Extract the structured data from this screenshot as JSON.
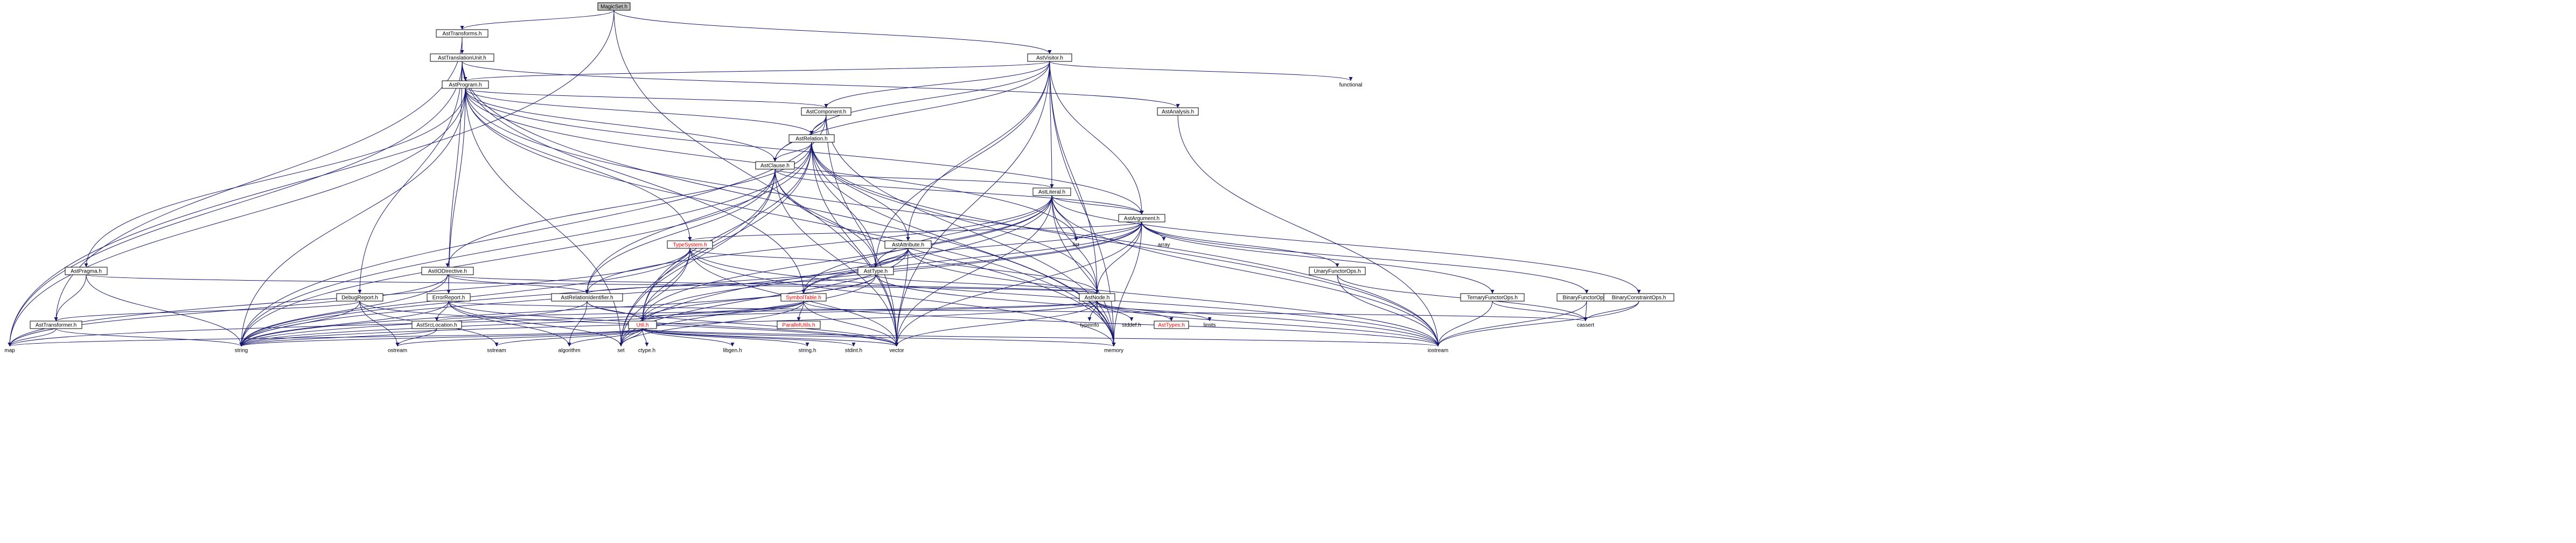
{
  "colors": {
    "edge": "#191970",
    "box_border": "#000000",
    "box_fill": "#ffffff",
    "root_fill": "#bfbfbf",
    "red_text": "#ff0000",
    "normal_text": "#000000"
  },
  "nodes": [
    {
      "id": "magicset",
      "label": "MagicSet.h",
      "style": "root"
    },
    {
      "id": "asttransforms",
      "label": "AstTransforms.h",
      "style": "box"
    },
    {
      "id": "asttranslationunit",
      "label": "AstTranslationUnit.h",
      "style": "box"
    },
    {
      "id": "astvisitor",
      "label": "AstVisitor.h",
      "style": "box"
    },
    {
      "id": "functional",
      "label": "functional",
      "style": "plain"
    },
    {
      "id": "astprogram",
      "label": "AstProgram.h",
      "style": "box"
    },
    {
      "id": "astanalysis",
      "label": "AstAnalysis.h",
      "style": "box"
    },
    {
      "id": "astcomponent",
      "label": "AstComponent.h",
      "style": "box"
    },
    {
      "id": "astrelation",
      "label": "AstRelation.h",
      "style": "box"
    },
    {
      "id": "astclause",
      "label": "AstClause.h",
      "style": "box"
    },
    {
      "id": "astliteral",
      "label": "AstLiteral.h",
      "style": "box"
    },
    {
      "id": "astargument",
      "label": "AstArgument.h",
      "style": "box"
    },
    {
      "id": "typesystem",
      "label": "TypeSystem.h",
      "style": "red"
    },
    {
      "id": "astattribute",
      "label": "AstAttribute.h",
      "style": "box"
    },
    {
      "id": "list",
      "label": "list",
      "style": "plain"
    },
    {
      "id": "array",
      "label": "array",
      "style": "plain"
    },
    {
      "id": "unaryfunctorops",
      "label": "UnaryFunctorOps.h",
      "style": "box"
    },
    {
      "id": "astpragma",
      "label": "AstPragma.h",
      "style": "box"
    },
    {
      "id": "astiodirective",
      "label": "AstIODirective.h",
      "style": "box"
    },
    {
      "id": "asttype",
      "label": "AstType.h",
      "style": "box"
    },
    {
      "id": "debugreport",
      "label": "DebugReport.h",
      "style": "box"
    },
    {
      "id": "errorreport",
      "label": "ErrorReport.h",
      "style": "box"
    },
    {
      "id": "astrelationidentifier",
      "label": "AstRelationIdentifier.h",
      "style": "box"
    },
    {
      "id": "symboltable",
      "label": "SymbolTable.h",
      "style": "red"
    },
    {
      "id": "astnode",
      "label": "AstNode.h",
      "style": "box"
    },
    {
      "id": "ternaryfunctorops",
      "label": "TernaryFunctorOps.h",
      "style": "box"
    },
    {
      "id": "binaryfunctorops",
      "label": "BinaryFunctorOps.h",
      "style": "box"
    },
    {
      "id": "binaryconstraintops",
      "label": "BinaryConstraintOps.h",
      "style": "box"
    },
    {
      "id": "asttransformer",
      "label": "AstTransformer.h",
      "style": "box"
    },
    {
      "id": "astsrclocation",
      "label": "AstSrcLocation.h",
      "style": "box"
    },
    {
      "id": "parallelutils",
      "label": "ParallelUtils.h",
      "style": "red"
    },
    {
      "id": "util",
      "label": "Util.h",
      "style": "red"
    },
    {
      "id": "typeinfo",
      "label": "typeinfo",
      "style": "plain"
    },
    {
      "id": "stddef",
      "label": "stddef.h",
      "style": "plain"
    },
    {
      "id": "asttypes",
      "label": "AstTypes.h",
      "style": "red"
    },
    {
      "id": "limits",
      "label": "limits",
      "style": "plain"
    },
    {
      "id": "cassert",
      "label": "cassert",
      "style": "plain"
    },
    {
      "id": "map",
      "label": "map",
      "style": "plain"
    },
    {
      "id": "string",
      "label": "string",
      "style": "plain"
    },
    {
      "id": "ostream",
      "label": "ostream",
      "style": "plain"
    },
    {
      "id": "sstream",
      "label": "sstream",
      "style": "plain"
    },
    {
      "id": "algorithm",
      "label": "algorithm",
      "style": "plain"
    },
    {
      "id": "set",
      "label": "set",
      "style": "plain"
    },
    {
      "id": "ctype",
      "label": "ctype.h",
      "style": "plain"
    },
    {
      "id": "libgen",
      "label": "libgen.h",
      "style": "plain"
    },
    {
      "id": "stringh",
      "label": "string.h",
      "style": "plain"
    },
    {
      "id": "stdint",
      "label": "stdint.h",
      "style": "plain"
    },
    {
      "id": "vector",
      "label": "vector",
      "style": "plain"
    },
    {
      "id": "memory",
      "label": "memory",
      "style": "plain"
    },
    {
      "id": "iostream",
      "label": "iostream",
      "style": "plain"
    }
  ],
  "edges": [
    [
      "magicset",
      "asttransforms"
    ],
    [
      "magicset",
      "astvisitor"
    ],
    [
      "magicset",
      "map"
    ],
    [
      "magicset",
      "vector"
    ],
    [
      "asttransforms",
      "asttranslationunit"
    ],
    [
      "asttransforms",
      "asttransformer"
    ],
    [
      "asttranslationunit",
      "astprogram"
    ],
    [
      "asttranslationunit",
      "astanalysis"
    ],
    [
      "asttranslationunit",
      "debugreport"
    ],
    [
      "asttranslationunit",
      "errorreport"
    ],
    [
      "asttranslationunit",
      "symboltable"
    ],
    [
      "asttranslationunit",
      "memory"
    ],
    [
      "asttranslationunit",
      "map"
    ],
    [
      "astvisitor",
      "astprogram"
    ],
    [
      "astvisitor",
      "astcomponent"
    ],
    [
      "astvisitor",
      "astrelation"
    ],
    [
      "astvisitor",
      "astclause"
    ],
    [
      "astvisitor",
      "astliteral"
    ],
    [
      "astvisitor",
      "astargument"
    ],
    [
      "astvisitor",
      "astattribute"
    ],
    [
      "astvisitor",
      "asttype"
    ],
    [
      "astvisitor",
      "astnode"
    ],
    [
      "astvisitor",
      "functional"
    ],
    [
      "astvisitor",
      "vector"
    ],
    [
      "astvisitor",
      "memory"
    ],
    [
      "astprogram",
      "astrelation"
    ],
    [
      "astprogram",
      "astclause"
    ],
    [
      "astprogram",
      "astcomponent"
    ],
    [
      "astprogram",
      "astpragma"
    ],
    [
      "astprogram",
      "typesystem"
    ],
    [
      "astprogram",
      "astargument"
    ],
    [
      "astprogram",
      "errorreport"
    ],
    [
      "astprogram",
      "map"
    ],
    [
      "astprogram",
      "string"
    ],
    [
      "astprogram",
      "set"
    ],
    [
      "astprogram",
      "list"
    ],
    [
      "astprogram",
      "iostream"
    ],
    [
      "astprogram",
      "memory"
    ],
    [
      "astanalysis",
      "iostream"
    ],
    [
      "astcomponent",
      "astrelation"
    ],
    [
      "astcomponent",
      "astclause"
    ],
    [
      "astcomponent",
      "vector"
    ],
    [
      "astcomponent",
      "string"
    ],
    [
      "astcomponent",
      "memory"
    ],
    [
      "astrelation",
      "astclause"
    ],
    [
      "astrelation",
      "astattribute"
    ],
    [
      "astrelation",
      "astiodirective"
    ],
    [
      "astrelation",
      "astrelationidentifier"
    ],
    [
      "astrelation",
      "asttype"
    ],
    [
      "astrelation",
      "astnode"
    ],
    [
      "astrelation",
      "set"
    ],
    [
      "astrelation",
      "string"
    ],
    [
      "astrelation",
      "vector"
    ],
    [
      "astrelation",
      "memory"
    ],
    [
      "astrelation",
      "iostream"
    ],
    [
      "astrelation",
      "util"
    ],
    [
      "astclause",
      "astliteral"
    ],
    [
      "astclause",
      "astargument"
    ],
    [
      "astclause",
      "astrelationidentifier"
    ],
    [
      "astclause",
      "asttype"
    ],
    [
      "astclause",
      "util"
    ],
    [
      "astclause",
      "string"
    ],
    [
      "astclause",
      "vector"
    ],
    [
      "astclause",
      "set"
    ],
    [
      "astclause",
      "memory"
    ],
    [
      "astliteral",
      "astargument"
    ],
    [
      "astliteral",
      "astnode"
    ],
    [
      "astliteral",
      "astrelationidentifier"
    ],
    [
      "astliteral",
      "asttype"
    ],
    [
      "astliteral",
      "symboltable"
    ],
    [
      "astliteral",
      "util"
    ],
    [
      "astliteral",
      "list"
    ],
    [
      "astliteral",
      "set"
    ],
    [
      "astliteral",
      "vector"
    ],
    [
      "astliteral",
      "memory"
    ],
    [
      "astliteral",
      "iostream"
    ],
    [
      "astliteral",
      "binaryconstraintops"
    ],
    [
      "astargument",
      "astnode"
    ],
    [
      "astargument",
      "asttype"
    ],
    [
      "astargument",
      "symboltable"
    ],
    [
      "astargument",
      "typesystem"
    ],
    [
      "astargument",
      "unaryfunctorops"
    ],
    [
      "astargument",
      "binaryfunctorops"
    ],
    [
      "astargument",
      "ternaryfunctorops"
    ],
    [
      "astargument",
      "array"
    ],
    [
      "astargument",
      "list"
    ],
    [
      "astargument",
      "string"
    ],
    [
      "astargument",
      "vector"
    ],
    [
      "astargument",
      "memory"
    ],
    [
      "astargument",
      "util"
    ],
    [
      "typesystem",
      "asttype"
    ],
    [
      "typesystem",
      "util"
    ],
    [
      "typesystem",
      "map"
    ],
    [
      "typesystem",
      "string"
    ],
    [
      "typesystem",
      "set"
    ],
    [
      "typesystem",
      "vector"
    ],
    [
      "typesystem",
      "iostream"
    ],
    [
      "typesystem",
      "memory"
    ],
    [
      "astattribute",
      "astnode"
    ],
    [
      "astattribute",
      "asttype"
    ],
    [
      "astattribute",
      "symboltable"
    ],
    [
      "astattribute",
      "string"
    ],
    [
      "astattribute",
      "vector"
    ],
    [
      "astattribute",
      "set"
    ],
    [
      "astattribute",
      "iostream"
    ],
    [
      "unaryfunctorops",
      "cassert"
    ],
    [
      "unaryfunctorops",
      "iostream"
    ],
    [
      "astpragma",
      "astnode"
    ],
    [
      "astpragma",
      "asttransformer"
    ],
    [
      "astpragma",
      "string"
    ],
    [
      "astiodirective",
      "astnode"
    ],
    [
      "astiodirective",
      "astrelationidentifier"
    ],
    [
      "astiodirective",
      "string"
    ],
    [
      "astiodirective",
      "map"
    ],
    [
      "asttype",
      "astnode"
    ],
    [
      "asttype",
      "astrelationidentifier"
    ],
    [
      "asttype",
      "util"
    ],
    [
      "asttype",
      "string"
    ],
    [
      "asttype",
      "set"
    ],
    [
      "asttype",
      "iostream"
    ],
    [
      "debugreport",
      "asttransformer"
    ],
    [
      "debugreport",
      "string"
    ],
    [
      "debugreport",
      "ostream"
    ],
    [
      "debugreport",
      "sstream"
    ],
    [
      "debugreport",
      "vector"
    ],
    [
      "errorreport",
      "astsrclocation"
    ],
    [
      "errorreport",
      "string"
    ],
    [
      "errorreport",
      "set"
    ],
    [
      "errorreport",
      "algorithm"
    ],
    [
      "errorreport",
      "vector"
    ],
    [
      "errorreport",
      "cassert"
    ],
    [
      "astrelationidentifier",
      "util"
    ],
    [
      "astrelationidentifier",
      "string"
    ],
    [
      "astrelationidentifier",
      "algorithm"
    ],
    [
      "astrelationidentifier",
      "vector"
    ],
    [
      "symboltable",
      "parallelutils"
    ],
    [
      "symboltable",
      "util"
    ],
    [
      "symboltable",
      "string"
    ],
    [
      "symboltable",
      "set"
    ],
    [
      "symboltable",
      "map"
    ],
    [
      "symboltable",
      "iostream"
    ],
    [
      "symboltable",
      "vector"
    ],
    [
      "astnode",
      "astsrclocation"
    ],
    [
      "astnode",
      "asttypes"
    ],
    [
      "astnode",
      "typeinfo"
    ],
    [
      "astnode",
      "stddef"
    ],
    [
      "astnode",
      "limits"
    ],
    [
      "astnode",
      "util"
    ],
    [
      "astnode",
      "vector"
    ],
    [
      "astnode",
      "memory"
    ],
    [
      "astnode",
      "string"
    ],
    [
      "astnode",
      "iostream"
    ],
    [
      "ternaryfunctorops",
      "cassert"
    ],
    [
      "ternaryfunctorops",
      "iostream"
    ],
    [
      "binaryfunctorops",
      "cassert"
    ],
    [
      "binaryfunctorops",
      "iostream"
    ],
    [
      "binaryconstraintops",
      "cassert"
    ],
    [
      "binaryconstraintops",
      "iostream"
    ],
    [
      "asttransformer",
      "map"
    ],
    [
      "asttransformer",
      "string"
    ],
    [
      "astsrclocation",
      "string"
    ],
    [
      "astsrclocation",
      "ostream"
    ],
    [
      "util",
      "map"
    ],
    [
      "util",
      "string"
    ],
    [
      "util",
      "ostream"
    ],
    [
      "util",
      "sstream"
    ],
    [
      "util",
      "algorithm"
    ],
    [
      "util",
      "set"
    ],
    [
      "util",
      "ctype"
    ],
    [
      "util",
      "libgen"
    ],
    [
      "util",
      "stringh"
    ],
    [
      "util",
      "stdint"
    ],
    [
      "util",
      "vector"
    ],
    [
      "util",
      "memory"
    ],
    [
      "util",
      "iostream"
    ]
  ]
}
